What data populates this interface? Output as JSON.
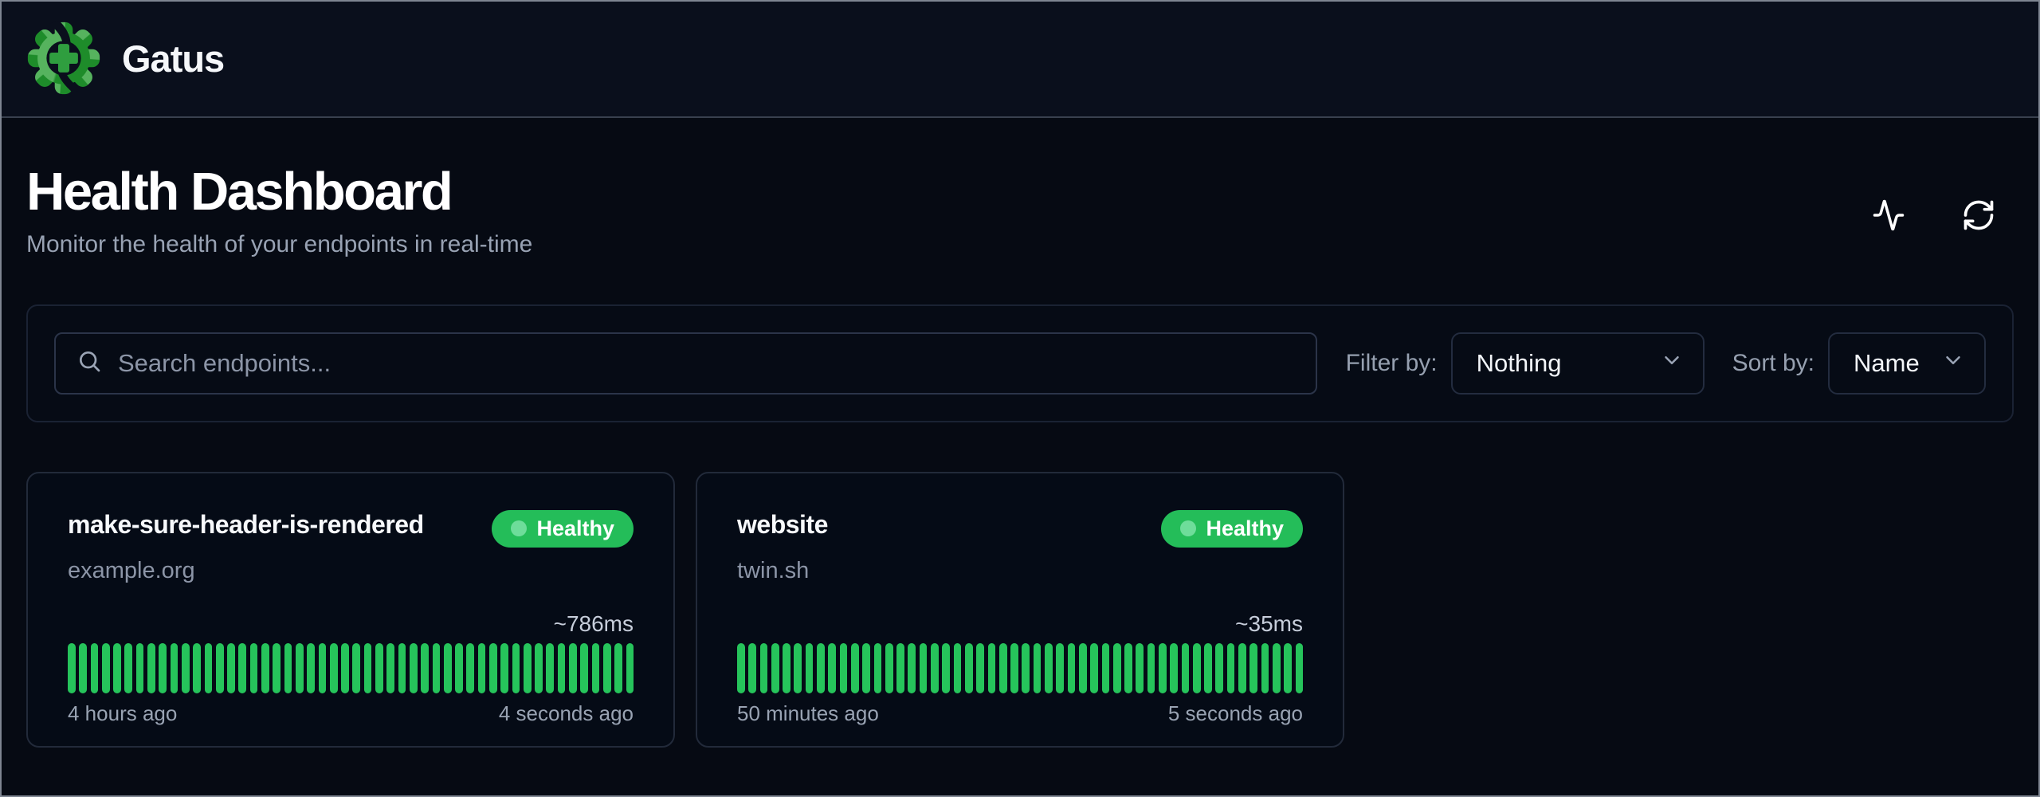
{
  "app": {
    "name": "Gatus"
  },
  "page": {
    "title": "Health Dashboard",
    "subtitle": "Monitor the health of your endpoints in real-time"
  },
  "header_actions": {
    "activity_icon": "activity-pulse-icon",
    "refresh_icon": "refresh-icon"
  },
  "toolbar": {
    "search_placeholder": "Search endpoints...",
    "search_value": "",
    "search_icon": "search-icon",
    "filter_label": "Filter by:",
    "filter_value": "Nothing",
    "sort_label": "Sort by:",
    "sort_value": "Name",
    "chevron_icon": "chevron-down-icon"
  },
  "endpoints": [
    {
      "name": "make-sure-header-is-rendered",
      "host": "example.org",
      "status": "Healthy",
      "response_time": "~786ms",
      "oldest": "4 hours ago",
      "newest": "4 seconds ago",
      "bars": {
        "count": 50,
        "status": "up"
      }
    },
    {
      "name": "website",
      "host": "twin.sh",
      "status": "Healthy",
      "response_time": "~35ms",
      "oldest": "50 minutes ago",
      "newest": "5 seconds ago",
      "bars": {
        "count": 50,
        "status": "up"
      }
    }
  ],
  "colors": {
    "page_bg": "#060a13",
    "header_bg": "#0a0f1c",
    "bar_green": "#26c45b",
    "badge_green": "#24bd59",
    "badge_dot_green": "#6edd9a",
    "muted_text": "#98a2b3",
    "logo_light_green": "#56b35e",
    "logo_dark_green": "#1e8c2a"
  }
}
